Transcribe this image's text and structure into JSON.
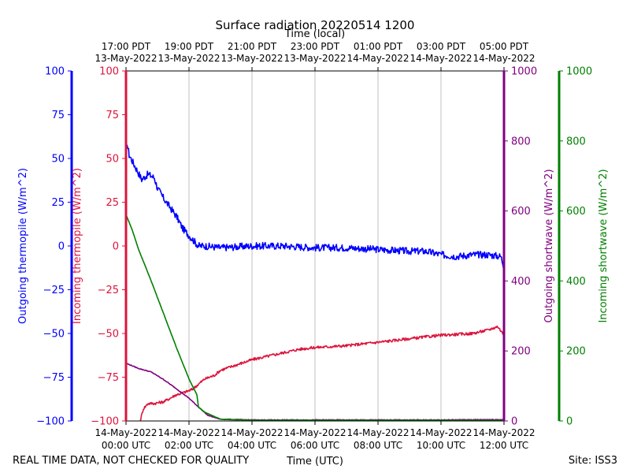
{
  "chart_data": {
    "type": "line",
    "title": "Surface radiation 20220514 1200",
    "top_axis_label": "Time (local)",
    "xlabel": "Time (UTC)",
    "footer_left": "REAL TIME DATA, NOT CHECKED FOR QUALITY",
    "footer_right": "Site: ISS3",
    "x_range_hours": [
      0,
      12
    ],
    "x_ticks": [
      {
        "h": 0,
        "utc_date": "14-May-2022",
        "utc_time": "00:00 UTC",
        "local_time": "17:00 PDT",
        "local_date": "13-May-2022"
      },
      {
        "h": 2,
        "utc_date": "14-May-2022",
        "utc_time": "02:00 UTC",
        "local_time": "19:00 PDT",
        "local_date": "13-May-2022"
      },
      {
        "h": 4,
        "utc_date": "14-May-2022",
        "utc_time": "04:00 UTC",
        "local_time": "21:00 PDT",
        "local_date": "13-May-2022"
      },
      {
        "h": 6,
        "utc_date": "14-May-2022",
        "utc_time": "06:00 UTC",
        "local_time": "23:00 PDT",
        "local_date": "13-May-2022"
      },
      {
        "h": 8,
        "utc_date": "14-May-2022",
        "utc_time": "08:00 UTC",
        "local_time": "01:00 PDT",
        "local_date": "14-May-2022"
      },
      {
        "h": 10,
        "utc_date": "14-May-2022",
        "utc_time": "10:00 UTC",
        "local_time": "03:00 PDT",
        "local_date": "14-May-2022"
      },
      {
        "h": 12,
        "utc_date": "14-May-2022",
        "utc_time": "12:00 UTC",
        "local_time": "05:00 PDT",
        "local_date": "14-May-2022"
      }
    ],
    "axes": {
      "outgoing_thermopile": {
        "label": "Outgoing thermopile (W/m^2)",
        "color": "#0000ff",
        "ylim": [
          -100,
          100
        ],
        "ticks": [
          "100",
          "75",
          "50",
          "25",
          "0",
          "−25",
          "−50",
          "−75",
          "−100"
        ],
        "tick_values": [
          100,
          75,
          50,
          25,
          0,
          -25,
          -50,
          -75,
          -100
        ]
      },
      "incoming_thermopile": {
        "label": "Incoming thermopile (W/m^2)",
        "color": "#dc143c",
        "ylim": [
          -100,
          100
        ],
        "ticks": [
          "100",
          "75",
          "50",
          "25",
          "0",
          "−25",
          "−50",
          "−75",
          "−100"
        ],
        "tick_values": [
          100,
          75,
          50,
          25,
          0,
          -25,
          -50,
          -75,
          -100
        ]
      },
      "outgoing_shortwave": {
        "label": "Outgoing shortwave (W/m^2)",
        "color": "#800080",
        "ylim": [
          0,
          1000
        ],
        "ticks": [
          "0",
          "200",
          "400",
          "600",
          "800",
          "1000"
        ],
        "tick_values": [
          0,
          200,
          400,
          600,
          800,
          1000
        ]
      },
      "incoming_shortwave": {
        "label": "Incoming shortwave (W/m^2)",
        "color": "#008000",
        "ylim": [
          0,
          1000
        ],
        "ticks": [
          "0",
          "200",
          "400",
          "600",
          "800",
          "1000"
        ],
        "tick_values": [
          0,
          200,
          400,
          600,
          800,
          1000
        ]
      }
    },
    "series": [
      {
        "name": "Outgoing thermopile",
        "axis": "outgoing_thermopile",
        "color": "#0000ff",
        "noise": 2.0,
        "points": [
          [
            0,
            52
          ],
          [
            0.05,
            58
          ],
          [
            0.1,
            52
          ],
          [
            0.3,
            45
          ],
          [
            0.5,
            38
          ],
          [
            0.7,
            41
          ],
          [
            0.9,
            39
          ],
          [
            1.0,
            33
          ],
          [
            1.2,
            27
          ],
          [
            1.4,
            22
          ],
          [
            1.6,
            17
          ],
          [
            1.8,
            10
          ],
          [
            2.0,
            6
          ],
          [
            2.2,
            2
          ],
          [
            2.3,
            0
          ],
          [
            2.5,
            0
          ],
          [
            3,
            -1
          ],
          [
            4,
            0
          ],
          [
            5,
            0
          ],
          [
            6,
            -1
          ],
          [
            7,
            -1
          ],
          [
            8,
            -2
          ],
          [
            9,
            -3
          ],
          [
            9.5,
            -3
          ],
          [
            10,
            -5
          ],
          [
            10.5,
            -6
          ],
          [
            11,
            -5
          ],
          [
            11.5,
            -5
          ],
          [
            11.9,
            -6
          ],
          [
            12,
            -12
          ]
        ]
      },
      {
        "name": "Incoming thermopile",
        "axis": "incoming_thermopile",
        "color": "#dc143c",
        "noise": 0.8,
        "points": [
          [
            0.45,
            -100
          ],
          [
            0.55,
            -93
          ],
          [
            0.7,
            -90
          ],
          [
            0.9,
            -90
          ],
          [
            1.2,
            -89
          ],
          [
            1.4,
            -87
          ],
          [
            1.6,
            -85
          ],
          [
            1.8,
            -84
          ],
          [
            2.1,
            -82
          ],
          [
            2.3,
            -79
          ],
          [
            2.5,
            -76
          ],
          [
            2.8,
            -74
          ],
          [
            3.0,
            -71
          ],
          [
            3.5,
            -68
          ],
          [
            4.0,
            -65
          ],
          [
            4.5,
            -63
          ],
          [
            5.0,
            -61
          ],
          [
            5.5,
            -59
          ],
          [
            6.0,
            -58
          ],
          [
            7.0,
            -57
          ],
          [
            8.0,
            -55
          ],
          [
            9.0,
            -53
          ],
          [
            10.0,
            -51
          ],
          [
            11.0,
            -50
          ],
          [
            11.5,
            -48
          ],
          [
            11.8,
            -46
          ],
          [
            12.0,
            -51
          ]
        ]
      },
      {
        "name": "Outgoing shortwave",
        "axis": "outgoing_shortwave",
        "color": "#800080",
        "noise": 1.0,
        "points": [
          [
            0,
            165
          ],
          [
            0.4,
            150
          ],
          [
            0.8,
            140
          ],
          [
            1.2,
            118
          ],
          [
            1.6,
            92
          ],
          [
            2.0,
            65
          ],
          [
            2.3,
            40
          ],
          [
            2.6,
            16
          ],
          [
            3.0,
            5
          ],
          [
            3.5,
            4
          ],
          [
            4,
            3
          ],
          [
            6,
            3
          ],
          [
            8,
            3
          ],
          [
            10,
            3
          ],
          [
            11.5,
            4
          ],
          [
            12,
            4
          ]
        ]
      },
      {
        "name": "Incoming shortwave",
        "axis": "incoming_shortwave",
        "color": "#008000",
        "noise": 0.5,
        "points": [
          [
            0,
            590
          ],
          [
            0.2,
            545
          ],
          [
            0.4,
            490
          ],
          [
            0.8,
            400
          ],
          [
            1.2,
            305
          ],
          [
            1.6,
            210
          ],
          [
            2.0,
            120
          ],
          [
            2.25,
            75
          ],
          [
            2.3,
            40
          ],
          [
            2.5,
            25
          ],
          [
            3.0,
            5
          ],
          [
            4,
            2
          ],
          [
            12,
            2
          ]
        ]
      }
    ]
  }
}
